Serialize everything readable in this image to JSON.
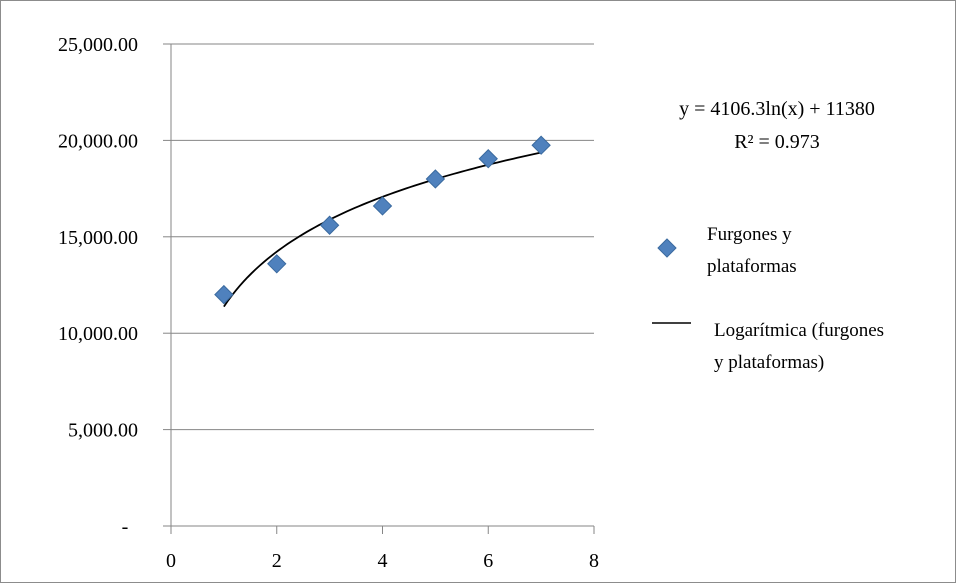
{
  "chart_data": {
    "type": "scatter",
    "x": [
      1,
      2,
      3,
      4,
      5,
      6,
      7
    ],
    "series": [
      {
        "name": "Furgones y plataformas",
        "type": "scatter",
        "color": "#4f81bd",
        "marker": "diamond",
        "y": [
          12000,
          13600,
          15600,
          16600,
          18000,
          19050,
          19750
        ]
      },
      {
        "name": "Logarítmica (furgones y plataformas)",
        "type": "trendline",
        "color": "#000000",
        "fit": {
          "kind": "logarithmic",
          "a": 4106.3,
          "b": 11380,
          "x_range": [
            1,
            7
          ]
        }
      }
    ],
    "xlim": [
      0,
      8
    ],
    "ylim": [
      0,
      25000
    ],
    "x_ticks": [
      0,
      2,
      4,
      6,
      8
    ],
    "y_ticks": [
      0,
      5000,
      10000,
      15000,
      20000,
      25000
    ],
    "x_tick_labels": [
      "0",
      "2",
      "4",
      "6",
      "8"
    ],
    "y_tick_labels": [
      "-",
      "5,000.00",
      "10,000.00",
      "15,000.00",
      "20,000.00",
      "25,000.00"
    ],
    "grid": "horizontal",
    "legend_position": "right",
    "annotation": {
      "equation": "y = 4106.3ln(x) + 11380",
      "r_squared": "R² = 0.973"
    },
    "legend": [
      {
        "line1": "Furgones y",
        "line2": "plataformas"
      },
      {
        "line1": "Logarítmica (furgones",
        "line2": "y plataformas)"
      }
    ]
  }
}
